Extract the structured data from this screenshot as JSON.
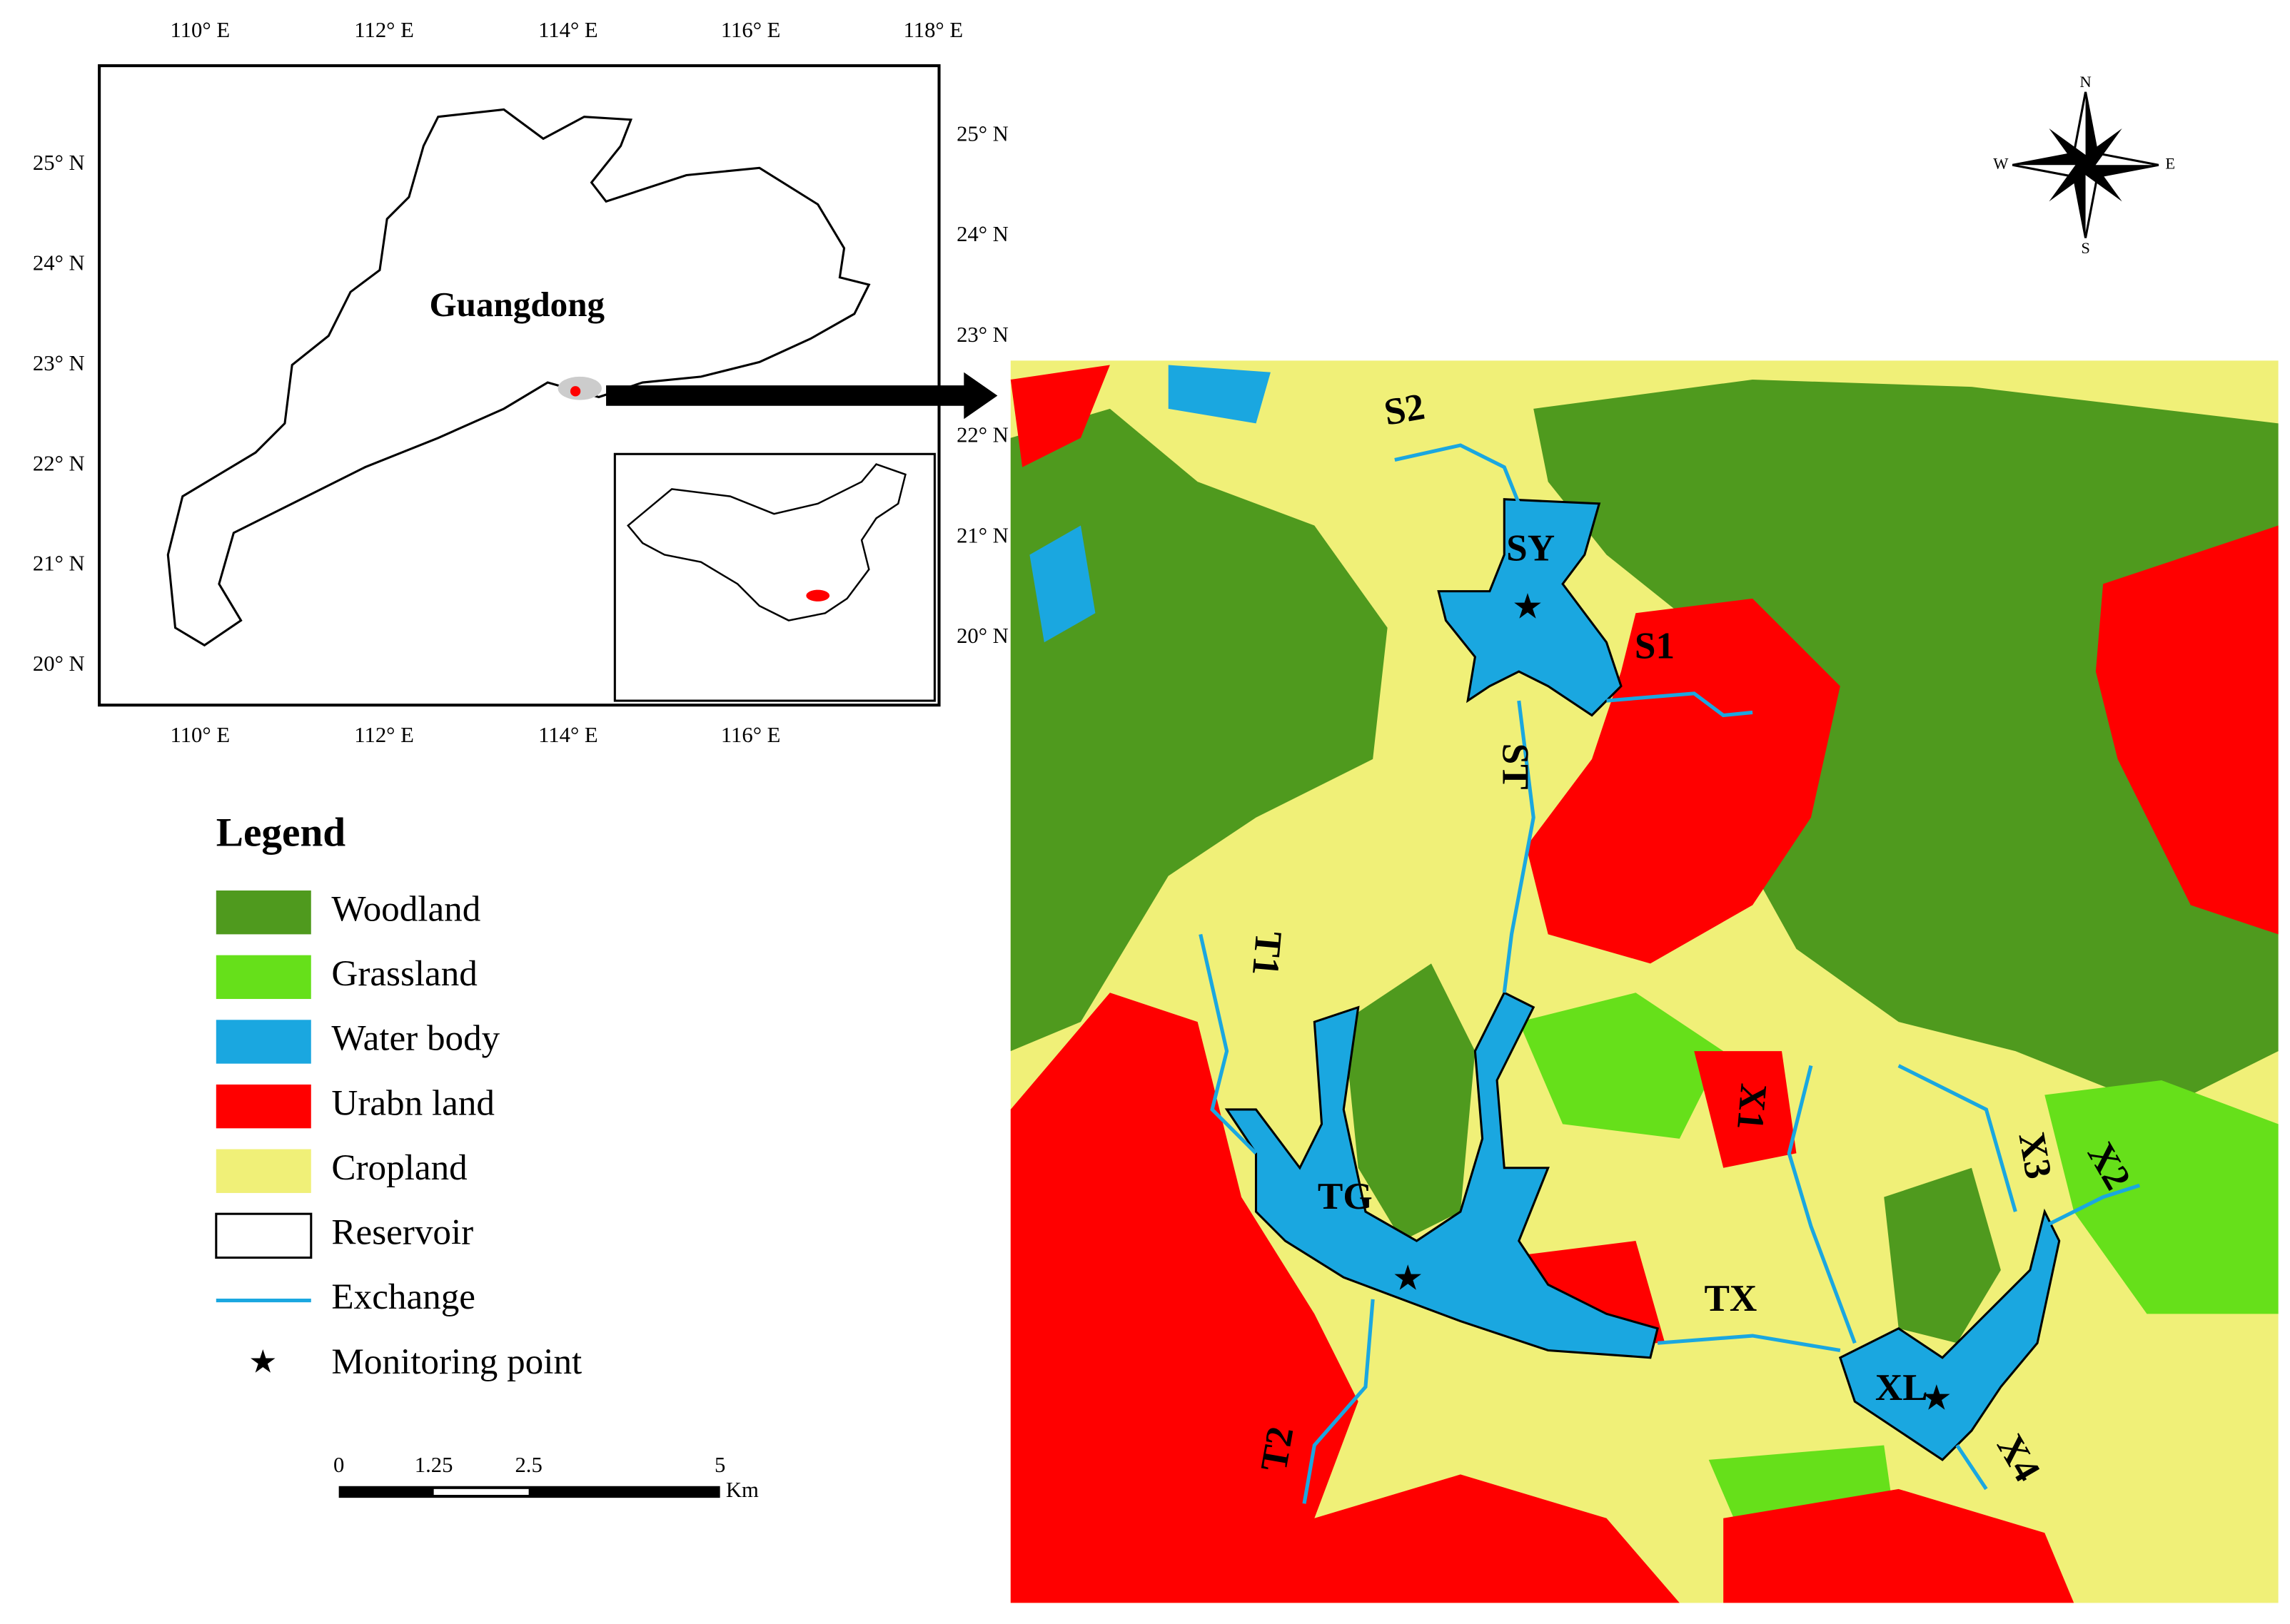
{
  "inset": {
    "region_label": "Guangdong",
    "lon_top": [
      "110° E",
      "112° E",
      "114° E",
      "116° E",
      "118° E"
    ],
    "lon_bottom": [
      "110° E",
      "112° E",
      "114° E",
      "116° E"
    ],
    "lat_left": [
      "25° N",
      "24° N",
      "23° N",
      "22° N",
      "21° N",
      "20° N"
    ],
    "lat_right": [
      "25° N",
      "24° N",
      "23° N",
      "22° N",
      "21° N",
      "20° N"
    ]
  },
  "legend": {
    "title": "Legend",
    "items": [
      "Woodland",
      "Grassland",
      "Water body",
      "Urabn land",
      "Cropland",
      "Reservoir",
      "Exchange",
      "Monitoring point"
    ]
  },
  "scale_bar": {
    "labels": [
      "0",
      "1.25",
      "2.5",
      "5"
    ],
    "unit": "Km"
  },
  "compass": {
    "n": "N",
    "s": "S",
    "w": "W",
    "e": "E"
  },
  "map_labels": [
    "S2",
    "SY",
    "S1",
    "ST",
    "T1",
    "TG",
    "T2",
    "TX",
    "X1",
    "X2",
    "X3",
    "X4",
    "XL"
  ]
}
